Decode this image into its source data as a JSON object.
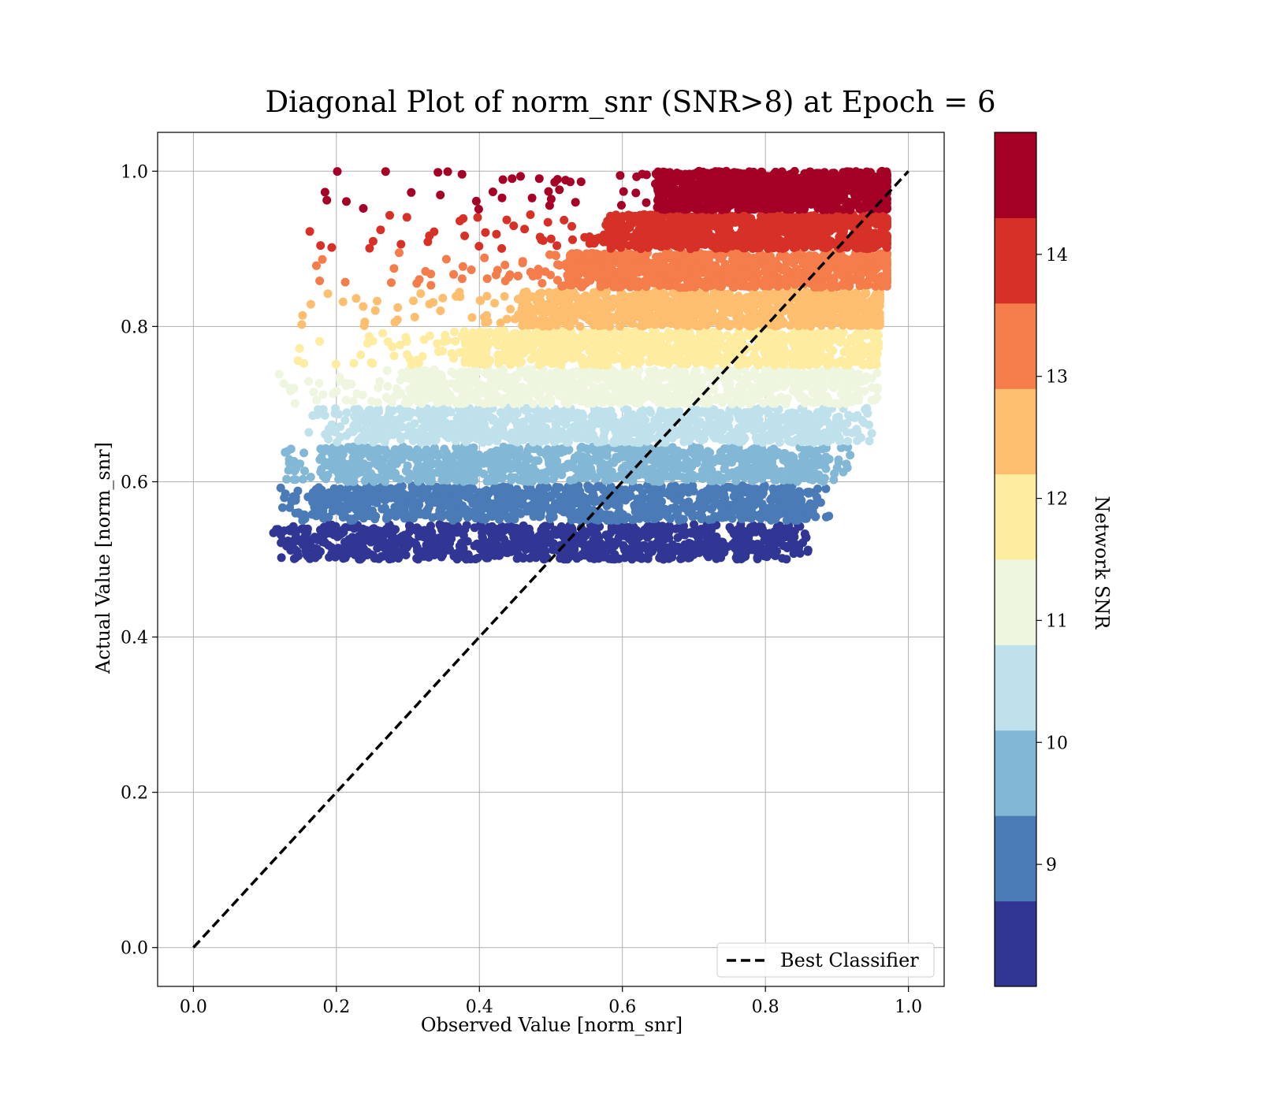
{
  "chart_data": {
    "type": "scatter",
    "title": "Diagonal Plot of norm_snr (SNR>8) at Epoch = 6",
    "xlabel": "Observed Value [norm_snr]",
    "ylabel": "Actual Value [norm_snr]",
    "xlim": [
      -0.05,
      1.05
    ],
    "ylim": [
      -0.05,
      1.05
    ],
    "x_ticks": [
      "0.0",
      "0.2",
      "0.4",
      "0.6",
      "0.8",
      "1.0"
    ],
    "y_ticks": [
      "0.0",
      "0.2",
      "0.4",
      "0.6",
      "0.8",
      "1.0"
    ],
    "grid": true,
    "reference_line": {
      "label": "Best Classifier",
      "style": "dashed",
      "color": "#000000",
      "x": [
        0.0,
        1.0
      ],
      "y": [
        0.0,
        1.0
      ]
    },
    "legend_placement": "lower-right",
    "colorbar": {
      "label": "Network SNR",
      "range": [
        8.0,
        15.0
      ],
      "ticks": [
        "9",
        "10",
        "11",
        "12",
        "13",
        "14"
      ],
      "bands": [
        {
          "from": 8.0,
          "to": 8.7,
          "color": "#313695"
        },
        {
          "from": 8.7,
          "to": 9.4,
          "color": "#4a7bb7"
        },
        {
          "from": 9.4,
          "to": 10.1,
          "color": "#82b7d6"
        },
        {
          "from": 10.1,
          "to": 10.8,
          "color": "#bfe1ec"
        },
        {
          "from": 10.8,
          "to": 11.5,
          "color": "#eef6e0"
        },
        {
          "from": 11.5,
          "to": 12.2,
          "color": "#feeca0"
        },
        {
          "from": 12.2,
          "to": 12.9,
          "color": "#fdbf6f"
        },
        {
          "from": 12.9,
          "to": 13.6,
          "color": "#f47d4b"
        },
        {
          "from": 13.6,
          "to": 14.3,
          "color": "#d73027"
        },
        {
          "from": 14.3,
          "to": 15.0,
          "color": "#a50026"
        }
      ]
    },
    "series": [
      {
        "snr_band": "8.0–8.7",
        "color": "#313695",
        "y_range": [
          0.5,
          0.545
        ],
        "x_range": [
          0.16,
          0.84
        ],
        "sparse_left_x": 0.11,
        "sparse_right_x": 0.86
      },
      {
        "snr_band": "8.7–9.4",
        "color": "#4a7bb7",
        "y_range": [
          0.55,
          0.595
        ],
        "x_range": [
          0.18,
          0.86
        ],
        "sparse_left_x": 0.12,
        "sparse_right_x": 0.89
      },
      {
        "snr_band": "9.4–10.1",
        "color": "#82b7d6",
        "y_range": [
          0.6,
          0.645
        ],
        "x_range": [
          0.2,
          0.88
        ],
        "sparse_left_x": 0.12,
        "sparse_right_x": 0.92
      },
      {
        "snr_band": "10.1–10.8",
        "color": "#bfe1ec",
        "y_range": [
          0.65,
          0.695
        ],
        "x_range": [
          0.24,
          0.91
        ],
        "sparse_left_x": 0.16,
        "sparse_right_x": 0.95
      },
      {
        "snr_band": "10.8–11.5",
        "color": "#eef6e0",
        "y_range": [
          0.7,
          0.745
        ],
        "x_range": [
          0.3,
          0.93
        ],
        "sparse_left_x": 0.12,
        "sparse_right_x": 0.96
      },
      {
        "snr_band": "11.5–12.2",
        "color": "#feeca0",
        "y_range": [
          0.75,
          0.795
        ],
        "x_range": [
          0.38,
          0.95
        ],
        "sparse_left_x": 0.14,
        "sparse_right_x": 0.96
      },
      {
        "snr_band": "12.2–12.9",
        "color": "#fdbf6f",
        "y_range": [
          0.8,
          0.845
        ],
        "x_range": [
          0.46,
          0.96
        ],
        "sparse_left_x": 0.15,
        "sparse_right_x": 0.96
      },
      {
        "snr_band": "12.9–13.6",
        "color": "#f47d4b",
        "y_range": [
          0.85,
          0.895
        ],
        "x_range": [
          0.52,
          0.97
        ],
        "sparse_left_x": 0.15,
        "sparse_right_x": 0.97
      },
      {
        "snr_band": "13.6–14.3",
        "color": "#d73027",
        "y_range": [
          0.9,
          0.945
        ],
        "x_range": [
          0.58,
          0.97
        ],
        "sparse_left_x": 0.16,
        "sparse_right_x": 0.97
      },
      {
        "snr_band": "14.3–15.0",
        "color": "#a50026",
        "y_range": [
          0.95,
          1.0
        ],
        "x_range": [
          0.65,
          0.97
        ],
        "sparse_left_x": 0.16,
        "sparse_right_x": 0.97
      }
    ]
  }
}
